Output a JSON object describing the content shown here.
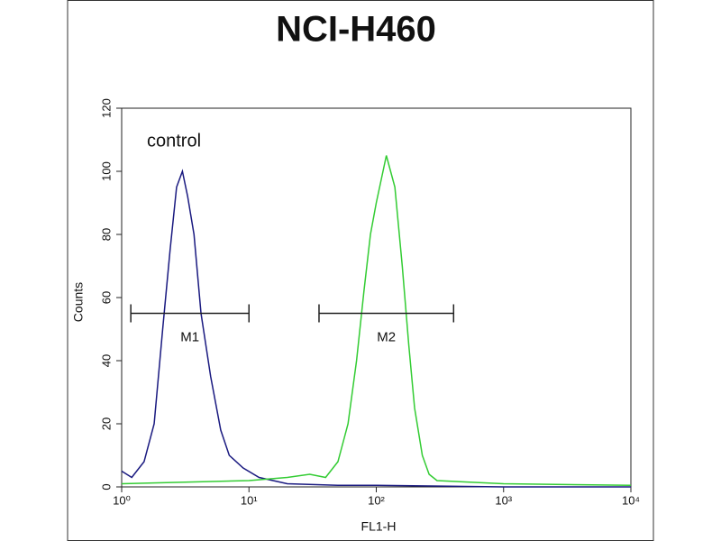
{
  "chart_data": {
    "type": "line",
    "title": "NCI-H460",
    "x_label": "FL1-H",
    "y_label": "Counts",
    "x_scale": "log",
    "xlim": [
      1,
      10000
    ],
    "ylim": [
      0,
      120
    ],
    "xticks": [
      {
        "value": 1,
        "label": "10⁰"
      },
      {
        "value": 10,
        "label": "10¹"
      },
      {
        "value": 100,
        "label": "10²"
      },
      {
        "value": 1000,
        "label": "10³"
      },
      {
        "value": 10000,
        "label": "10⁴"
      }
    ],
    "yticks": [
      0,
      20,
      40,
      60,
      80,
      100,
      120
    ],
    "annotation": "control",
    "series": [
      {
        "name": "control",
        "color": "#1a1a80",
        "x": [
          1,
          1.2,
          1.5,
          1.8,
          2.1,
          2.4,
          2.7,
          3.0,
          3.3,
          3.7,
          4.2,
          5,
          6,
          7,
          9,
          12,
          20,
          50,
          100,
          1000,
          10000
        ],
        "values": [
          5,
          3,
          8,
          20,
          50,
          75,
          95,
          100,
          92,
          80,
          55,
          35,
          18,
          10,
          6,
          3,
          1,
          0.5,
          0.5,
          0,
          0
        ]
      },
      {
        "name": "NCI-H460",
        "color": "#33cc33",
        "x": [
          1,
          10,
          20,
          30,
          40,
          50,
          60,
          70,
          80,
          90,
          100,
          120,
          140,
          160,
          180,
          200,
          230,
          260,
          300,
          1000,
          10000
        ],
        "values": [
          1,
          2,
          3,
          4,
          3,
          8,
          20,
          40,
          62,
          80,
          90,
          105,
          95,
          70,
          45,
          25,
          10,
          4,
          2,
          1,
          0.5
        ]
      }
    ],
    "markers": [
      {
        "label": "M1",
        "range": [
          1.18,
          10
        ],
        "y": 55
      },
      {
        "label": "M2",
        "range": [
          35.5,
          405
        ],
        "y": 55
      }
    ]
  }
}
